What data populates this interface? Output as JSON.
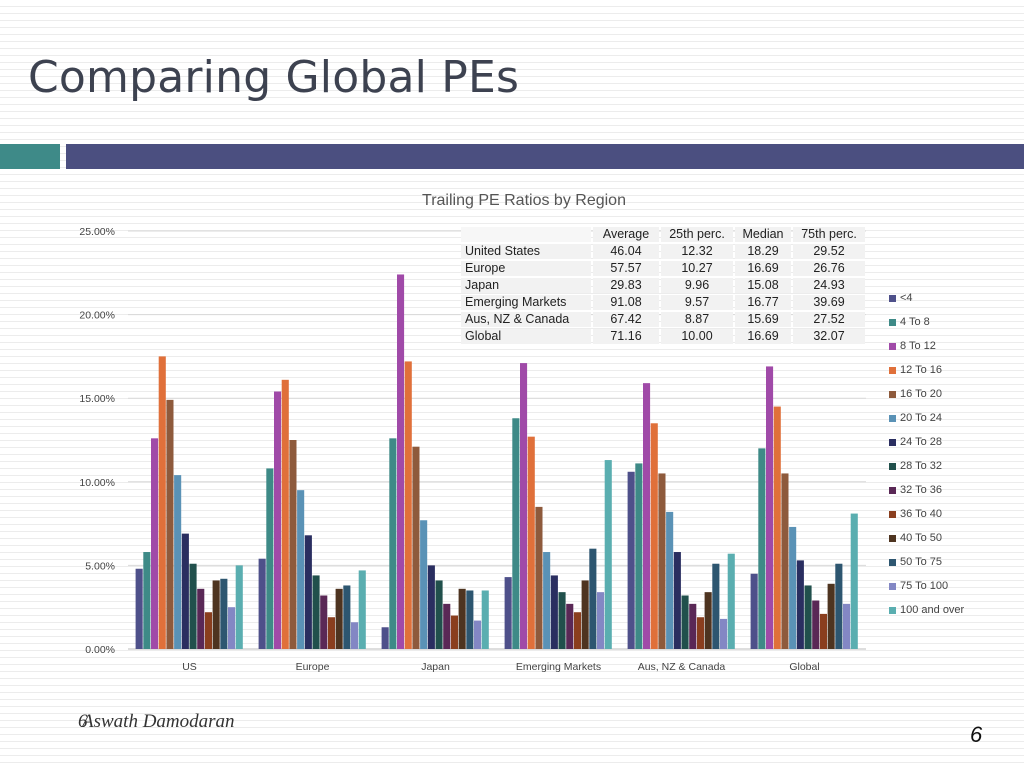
{
  "slide": {
    "title": "Comparing Global PEs",
    "author": "Aswath Damodaran",
    "corner_number": "6",
    "page_number": "6",
    "accent_colors": {
      "teal": "#3e8a88",
      "indigo": "#4b4f80"
    }
  },
  "table": {
    "headers": [
      "Average",
      "25th perc.",
      "Median",
      "75th perc."
    ],
    "rows": [
      {
        "region": "United States",
        "values": [
          "46.04",
          "12.32",
          "18.29",
          "29.52"
        ]
      },
      {
        "region": "Europe",
        "values": [
          "57.57",
          "10.27",
          "16.69",
          "26.76"
        ]
      },
      {
        "region": "Japan",
        "values": [
          "29.83",
          "9.96",
          "15.08",
          "24.93"
        ]
      },
      {
        "region": "Emerging Markets",
        "values": [
          "91.08",
          "9.57",
          "16.77",
          "39.69"
        ]
      },
      {
        "region": "Aus, NZ & Canada",
        "values": [
          "67.42",
          "8.87",
          "15.69",
          "27.52"
        ]
      },
      {
        "region": "Global",
        "values": [
          "71.16",
          "10.00",
          "16.69",
          "32.07"
        ]
      }
    ]
  },
  "chart_data": {
    "type": "bar",
    "title": "Trailing PE Ratios by Region",
    "xlabel": "",
    "ylabel": "",
    "ylim": [
      0,
      0.25
    ],
    "y_ticks": [
      "0.00%",
      "5.00%",
      "10.00%",
      "15.00%",
      "20.00%",
      "25.00%"
    ],
    "grid": true,
    "legend_position": "right",
    "categories": [
      "US",
      "Europe",
      "Japan",
      "Emerging Markets",
      "Aus, NZ & Canada",
      "Global"
    ],
    "series": [
      {
        "name": "<4",
        "color": "#4e508a",
        "values": [
          0.048,
          0.054,
          0.013,
          0.043,
          0.106,
          0.045
        ]
      },
      {
        "name": "4 To 8",
        "color": "#3e8a87",
        "values": [
          0.058,
          0.108,
          0.126,
          0.138,
          0.111,
          0.12
        ]
      },
      {
        "name": "8 To 12",
        "color": "#a04aa8",
        "values": [
          0.126,
          0.154,
          0.224,
          0.171,
          0.159,
          0.169
        ]
      },
      {
        "name": "12 To 16",
        "color": "#e0703a",
        "values": [
          0.175,
          0.161,
          0.172,
          0.127,
          0.135,
          0.145
        ]
      },
      {
        "name": "16 To 20",
        "color": "#8e5a3c",
        "values": [
          0.149,
          0.125,
          0.121,
          0.085,
          0.105,
          0.105
        ]
      },
      {
        "name": "20 To 24",
        "color": "#5a92b6",
        "values": [
          0.104,
          0.095,
          0.077,
          0.058,
          0.082,
          0.073
        ]
      },
      {
        "name": "24 To 28",
        "color": "#2a2e60",
        "values": [
          0.069,
          0.068,
          0.05,
          0.044,
          0.058,
          0.053
        ]
      },
      {
        "name": "28 To 32",
        "color": "#21504c",
        "values": [
          0.051,
          0.044,
          0.041,
          0.034,
          0.032,
          0.038
        ]
      },
      {
        "name": "32 To 36",
        "color": "#5a2856",
        "values": [
          0.036,
          0.032,
          0.027,
          0.027,
          0.027,
          0.029
        ]
      },
      {
        "name": "36 To 40",
        "color": "#8a3e1e",
        "values": [
          0.022,
          0.019,
          0.02,
          0.022,
          0.019,
          0.021
        ]
      },
      {
        "name": "40 To 50",
        "color": "#4e3420",
        "values": [
          0.041,
          0.036,
          0.036,
          0.041,
          0.034,
          0.039
        ]
      },
      {
        "name": "50 To 75",
        "color": "#2d5670",
        "values": [
          0.042,
          0.038,
          0.035,
          0.06,
          0.051,
          0.051
        ]
      },
      {
        "name": "75 To 100",
        "color": "#8387c4",
        "values": [
          0.025,
          0.016,
          0.017,
          0.034,
          0.018,
          0.027
        ]
      },
      {
        "name": "100 and over",
        "color": "#5aaeb0",
        "values": [
          0.05,
          0.047,
          0.035,
          0.113,
          0.057,
          0.081
        ]
      }
    ]
  }
}
